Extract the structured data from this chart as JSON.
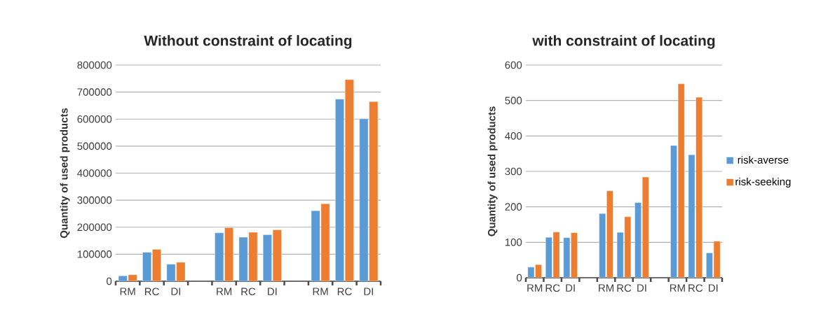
{
  "chart_data": [
    {
      "type": "bar",
      "title": "Without constraint of locating",
      "ylabel": "Quantity of used products",
      "categories": [
        "RM",
        "RC",
        "DI",
        null,
        "RM",
        "RC",
        "DI",
        null,
        "RM",
        "RC",
        "DI"
      ],
      "series": [
        {
          "color": "#5b9bd5",
          "values": [
            20000,
            107000,
            63000,
            null,
            179000,
            163000,
            172000,
            null,
            261000,
            674000,
            601000
          ]
        },
        {
          "color": "#ed7d31",
          "values": [
            24000,
            118000,
            70000,
            null,
            198000,
            181000,
            190000,
            null,
            287000,
            746000,
            665000
          ]
        }
      ],
      "ylim": [
        0,
        800000
      ],
      "yticks": [
        0,
        100000,
        200000,
        300000,
        400000,
        500000,
        600000,
        700000,
        800000
      ],
      "grid": "y",
      "legend": false
    },
    {
      "type": "bar",
      "title": "with constraint of locating",
      "ylabel": "Quantity of used products",
      "categories": [
        "RM",
        "RC",
        "DI",
        null,
        "RM",
        "RC",
        "DI",
        null,
        "RM",
        "RC",
        "DI"
      ],
      "series": [
        {
          "name": "risk-averse",
          "color": "#5b9bd5",
          "values": [
            30,
            114,
            113,
            null,
            181,
            128,
            212,
            null,
            373,
            347,
            70
          ]
        },
        {
          "name": "risk-seeking",
          "color": "#ed7d31",
          "values": [
            37,
            129,
            127,
            null,
            245,
            172,
            284,
            null,
            547,
            509,
            103
          ]
        }
      ],
      "ylim": [
        0,
        600
      ],
      "yticks": [
        0,
        100,
        200,
        300,
        400,
        500,
        600
      ],
      "grid": "y",
      "legend": "right"
    }
  ]
}
